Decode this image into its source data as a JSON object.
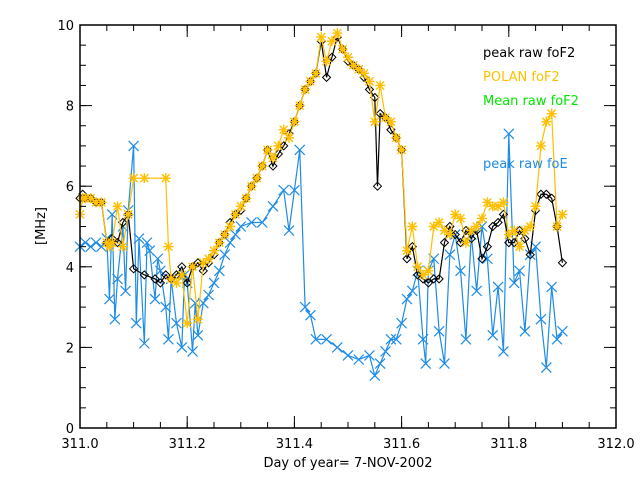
{
  "chart_data": {
    "type": "line",
    "title": "",
    "xlabel": "Day of year= 7-NOV-2002",
    "ylabel": "[MHz]",
    "xlim": [
      311.0,
      312.0
    ],
    "ylim": [
      0,
      10
    ],
    "x_ticks": [
      "311.0",
      "311.2",
      "311.4",
      "311.6",
      "311.8",
      "312.0"
    ],
    "x_tick_values": [
      311.0,
      311.2,
      311.4,
      311.6,
      311.8,
      312.0
    ],
    "y_ticks": [
      "0",
      "2",
      "4",
      "6",
      "8",
      "10"
    ],
    "y_tick_values": [
      0,
      2,
      4,
      6,
      8,
      10
    ],
    "x_minor_step": 0.05,
    "y_minor_step": 0.5,
    "grid": false,
    "legend_placement": "top-right",
    "legend": [
      {
        "label": "peak raw foF2",
        "color": "#000000"
      },
      {
        "label": "POLAN foF2",
        "color": "#FFBF00"
      },
      {
        "label": "Mean raw foF2",
        "color": "#00E600"
      },
      {
        "label": "peak raw foE",
        "color": "#1E8CE6"
      }
    ],
    "series": [
      {
        "name": "peak raw foF2",
        "color": "#000000",
        "marker": "diamond",
        "x": [
          311.0,
          311.005,
          311.01,
          311.02,
          311.03,
          311.04,
          311.05,
          311.055,
          311.06,
          311.07,
          311.08,
          311.09,
          311.1,
          311.12,
          311.14,
          311.15,
          311.16,
          311.17,
          311.18,
          311.19,
          311.2,
          311.21,
          311.22,
          311.23,
          311.24,
          311.25,
          311.26,
          311.27,
          311.28,
          311.29,
          311.3,
          311.31,
          311.32,
          311.33,
          311.34,
          311.35,
          311.36,
          311.37,
          311.38,
          311.39,
          311.4,
          311.41,
          311.42,
          311.43,
          311.44,
          311.45,
          311.46,
          311.47,
          311.48,
          311.49,
          311.5,
          311.51,
          311.52,
          311.53,
          311.54,
          311.55,
          311.555,
          311.56,
          311.57,
          311.58,
          311.59,
          311.6,
          311.61,
          311.62,
          311.63,
          311.64,
          311.65,
          311.66,
          311.67,
          311.68,
          311.69,
          311.7,
          311.71,
          311.72,
          311.73,
          311.74,
          311.75,
          311.76,
          311.77,
          311.78,
          311.79,
          311.8,
          311.81,
          311.82,
          311.83,
          311.84,
          311.85,
          311.86,
          311.87,
          311.88,
          311.89,
          311.9
        ],
        "y": [
          5.7,
          5.8,
          5.7,
          5.7,
          5.6,
          5.6,
          4.6,
          4.6,
          4.7,
          4.6,
          5.1,
          5.3,
          3.95,
          3.8,
          3.7,
          3.6,
          3.8,
          3.7,
          3.8,
          4.0,
          3.6,
          4.0,
          4.1,
          3.9,
          4.1,
          4.3,
          4.6,
          4.8,
          5.1,
          5.3,
          5.4,
          5.7,
          6.0,
          6.2,
          6.5,
          6.9,
          6.5,
          6.8,
          7.0,
          7.3,
          7.6,
          8.0,
          8.4,
          8.6,
          8.8,
          9.6,
          8.7,
          9.2,
          9.7,
          9.4,
          9.1,
          9.0,
          8.9,
          8.7,
          8.4,
          8.2,
          6.0,
          7.8,
          7.7,
          7.4,
          7.2,
          6.9,
          4.2,
          4.5,
          3.8,
          3.7,
          3.6,
          3.7,
          3.7,
          4.6,
          5.0,
          4.8,
          4.6,
          4.9,
          4.7,
          4.9,
          4.2,
          4.5,
          5.0,
          5.1,
          5.3,
          4.6,
          4.6,
          4.9,
          4.7,
          4.3,
          5.4,
          5.8,
          5.8,
          5.7,
          5.0,
          4.1
        ]
      },
      {
        "name": "POLAN foF2",
        "color": "#FFBF00",
        "marker": "asterisk",
        "x": [
          311.0,
          311.005,
          311.01,
          311.02,
          311.03,
          311.04,
          311.05,
          311.055,
          311.06,
          311.07,
          311.08,
          311.09,
          311.1,
          311.12,
          311.16,
          311.165,
          311.17,
          311.18,
          311.19,
          311.2,
          311.21,
          311.22,
          311.23,
          311.24,
          311.25,
          311.26,
          311.27,
          311.28,
          311.29,
          311.3,
          311.31,
          311.32,
          311.33,
          311.34,
          311.35,
          311.36,
          311.37,
          311.38,
          311.39,
          311.4,
          311.41,
          311.42,
          311.43,
          311.44,
          311.45,
          311.46,
          311.47,
          311.48,
          311.49,
          311.5,
          311.51,
          311.52,
          311.53,
          311.54,
          311.55,
          311.56,
          311.57,
          311.58,
          311.59,
          311.6,
          311.61,
          311.62,
          311.63,
          311.64,
          311.65,
          311.66,
          311.67,
          311.68,
          311.69,
          311.7,
          311.71,
          311.72,
          311.73,
          311.74,
          311.75,
          311.76,
          311.77,
          311.78,
          311.79,
          311.8,
          311.81,
          311.82,
          311.83,
          311.84,
          311.85,
          311.86,
          311.87,
          311.88,
          311.89,
          311.9
        ],
        "y": [
          5.3,
          5.7,
          5.7,
          5.7,
          5.6,
          5.6,
          4.6,
          4.5,
          4.6,
          5.5,
          4.5,
          5.3,
          6.2,
          6.2,
          6.2,
          4.5,
          3.7,
          3.6,
          3.8,
          2.6,
          4.0,
          2.7,
          4.1,
          4.2,
          4.4,
          4.6,
          4.8,
          5.0,
          5.3,
          5.5,
          5.7,
          6.0,
          6.2,
          6.5,
          6.9,
          6.7,
          7.0,
          7.4,
          7.2,
          7.6,
          8.0,
          8.4,
          8.6,
          8.8,
          9.7,
          9.1,
          9.6,
          9.8,
          9.4,
          9.2,
          9.0,
          8.9,
          8.8,
          8.6,
          7.6,
          8.5,
          7.7,
          7.6,
          7.2,
          6.9,
          4.4,
          5.0,
          4.0,
          3.8,
          3.9,
          5.0,
          5.1,
          4.9,
          4.8,
          5.3,
          5.2,
          4.6,
          4.9,
          5.0,
          5.2,
          5.6,
          5.5,
          5.5,
          5.6,
          4.8,
          4.9,
          4.5,
          4.9,
          5.0,
          5.5,
          7.0,
          7.6,
          7.8,
          5.0,
          5.3
        ]
      },
      {
        "name": "peak raw foE",
        "color": "#1E8CE6",
        "marker": "x",
        "x": [
          311.0,
          311.01,
          311.02,
          311.03,
          311.04,
          311.05,
          311.055,
          311.06,
          311.065,
          311.07,
          311.08,
          311.085,
          311.09,
          311.1,
          311.105,
          311.11,
          311.12,
          311.125,
          311.13,
          311.14,
          311.145,
          311.15,
          311.16,
          311.165,
          311.17,
          311.18,
          311.19,
          311.195,
          311.2,
          311.21,
          311.215,
          311.22,
          311.23,
          311.24,
          311.25,
          311.26,
          311.27,
          311.28,
          311.29,
          311.3,
          311.32,
          311.34,
          311.36,
          311.38,
          311.39,
          311.4,
          311.41,
          311.42,
          311.43,
          311.44,
          311.46,
          311.48,
          311.5,
          311.52,
          311.54,
          311.55,
          311.56,
          311.57,
          311.58,
          311.59,
          311.6,
          311.61,
          311.62,
          311.63,
          311.64,
          311.645,
          311.65,
          311.66,
          311.67,
          311.68,
          311.69,
          311.7,
          311.71,
          311.72,
          311.73,
          311.74,
          311.75,
          311.76,
          311.77,
          311.78,
          311.79,
          311.8,
          311.81,
          311.82,
          311.83,
          311.84,
          311.85,
          311.86,
          311.87,
          311.88,
          311.89,
          311.9
        ],
        "y": [
          4.5,
          4.6,
          4.5,
          4.6,
          4.5,
          4.7,
          3.2,
          5.3,
          2.7,
          3.7,
          5.0,
          3.4,
          5.4,
          7.0,
          2.6,
          4.7,
          2.1,
          4.6,
          4.4,
          3.2,
          4.2,
          3.9,
          3.0,
          2.2,
          3.7,
          2.6,
          2.0,
          3.8,
          3.6,
          1.9,
          3.1,
          2.3,
          3.1,
          3.3,
          3.6,
          3.9,
          4.3,
          4.6,
          4.8,
          5.0,
          5.1,
          5.1,
          5.5,
          5.9,
          4.9,
          5.9,
          6.9,
          3.0,
          2.8,
          2.2,
          2.2,
          2.0,
          1.8,
          1.7,
          1.8,
          1.3,
          1.6,
          1.9,
          2.2,
          2.2,
          2.6,
          3.2,
          3.4,
          3.9,
          2.2,
          1.6,
          3.9,
          4.2,
          2.4,
          1.6,
          4.3,
          4.8,
          3.9,
          2.2,
          4.8,
          3.4,
          5.0,
          4.2,
          2.3,
          3.5,
          1.9,
          7.3,
          3.6,
          3.9,
          2.4,
          4.3,
          4.5,
          2.7,
          1.5,
          3.5,
          2.2,
          2.4
        ]
      }
    ]
  }
}
